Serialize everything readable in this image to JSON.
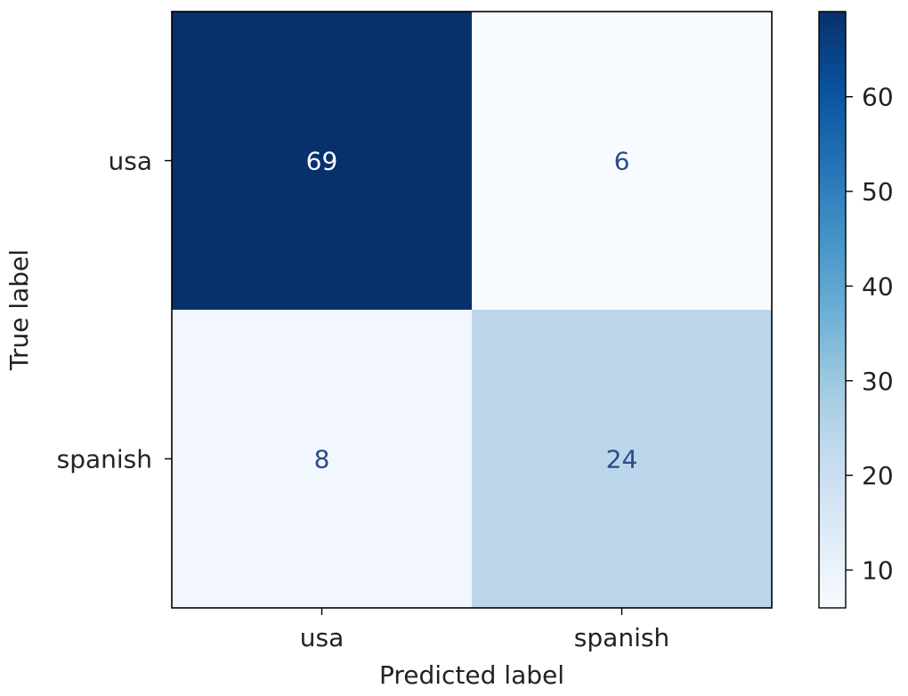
{
  "chart_data": {
    "type": "heatmap",
    "title": "",
    "xlabel": "Predicted label",
    "ylabel": "True label",
    "x_categories": [
      "usa",
      "spanish"
    ],
    "y_categories": [
      "usa",
      "spanish"
    ],
    "values": [
      [
        69,
        6
      ],
      [
        8,
        24
      ]
    ],
    "value_labels": [
      [
        "69",
        "6"
      ],
      [
        "8",
        "24"
      ]
    ],
    "colorscale": "Blues",
    "vmin": 6,
    "vmax": 69,
    "colorbar_ticks": [
      "10",
      "20",
      "30",
      "40",
      "50",
      "60"
    ],
    "colorbar_tick_values": [
      10,
      20,
      30,
      40,
      50,
      60
    ],
    "grid": false
  }
}
